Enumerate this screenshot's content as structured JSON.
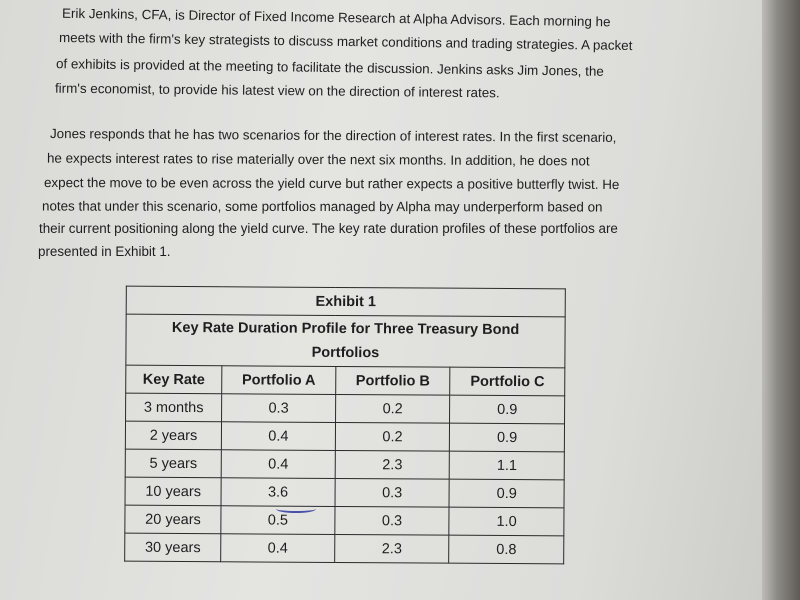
{
  "paragraphs": [
    {
      "lines": [
        "Erik Jenkins, CFA, is Director of Fixed Income Research at Alpha Advisors. Each morning he",
        "meets with the firm's key strategists to discuss market conditions and trading strategies. A packet",
        "of exhibits is provided at the meeting to facilitate the discussion. Jenkins asks Jim Jones, the",
        "firm's economist, to provide his latest view on the direction of interest rates."
      ]
    },
    {
      "lines": [
        "Jones responds that he has two scenarios for the direction of interest rates. In the first scenario,",
        "he expects interest rates to rise materially over the next six months. In addition, he does not",
        "expect the move to be even across the yield curve but rather expects a positive butterfly twist. He",
        "notes that under this scenario, some portfolios managed by Alpha may underperform based on",
        "their current positioning along the yield curve. The key rate duration profiles of these portfolios are",
        "presented in Exhibit 1."
      ]
    }
  ],
  "exhibit": {
    "title": "Exhibit 1",
    "subtitle": "Key Rate Duration Profile for Three Treasury Bond Portfolios",
    "columns": [
      "Key Rate",
      "Portfolio A",
      "Portfolio B",
      "Portfolio C"
    ],
    "rows": [
      [
        "3 months",
        "0.3",
        "0.2",
        "0.9"
      ],
      [
        "2 years",
        "0.4",
        "0.2",
        "0.9"
      ],
      [
        "5 years",
        "0.4",
        "2.3",
        "1.1"
      ],
      [
        "10 years",
        "3.6",
        "0.3",
        "0.9"
      ],
      [
        "20 years",
        "0.5",
        "0.3",
        "1.0"
      ],
      [
        "30 years",
        "0.4",
        "2.3",
        "0.8"
      ]
    ]
  },
  "colors": {
    "handwritten_underline": "#4a52a8"
  }
}
